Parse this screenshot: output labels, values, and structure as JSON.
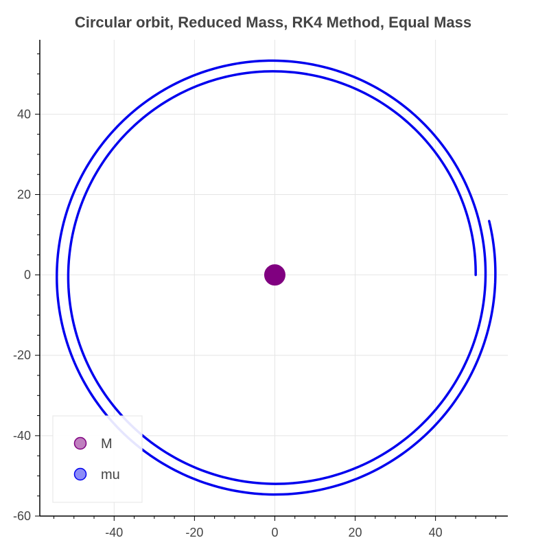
{
  "chart_data": {
    "type": "line",
    "title": "Circular orbit, Reduced Mass, RK4 Method, Equal Mass",
    "xlabel": "",
    "ylabel": "",
    "xlim": [
      -58.5,
      58
    ],
    "ylim": [
      -60,
      58.5
    ],
    "x_ticks": [
      -40,
      -20,
      0,
      20,
      40
    ],
    "y_ticks": [
      40,
      20,
      0,
      -20,
      -40,
      -60
    ],
    "x_tick_labels": [
      "-40",
      "-20",
      "0",
      "20",
      "40"
    ],
    "y_tick_labels": [
      "40",
      "20",
      "0",
      "-20",
      "-40",
      "-60"
    ],
    "grid": true,
    "legend": {
      "position": "bottom-left",
      "entries": [
        "M",
        "mu"
      ]
    },
    "series": [
      {
        "name": "M",
        "kind": "scatter",
        "color": "#800080",
        "points": [
          {
            "x": 0,
            "y": 0
          }
        ]
      },
      {
        "name": "mu",
        "kind": "line",
        "color": "#0000ee",
        "spiral": {
          "start_angle_deg": 0,
          "end_angle_deg": 734,
          "r_start": 50.0,
          "r_end": 55.4,
          "x_center_offset_start": 0.0,
          "x_center_offset_end": -0.4
        }
      }
    ]
  }
}
